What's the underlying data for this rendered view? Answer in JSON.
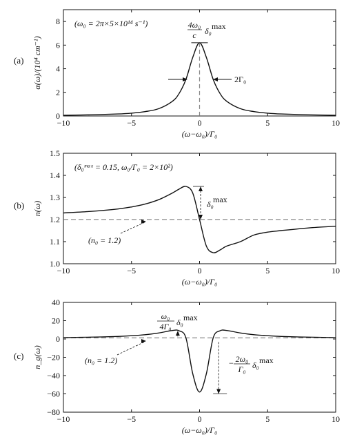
{
  "chart_data": [
    {
      "type": "line",
      "panel_label": "(a)",
      "xlabel": "(ω−ω₀)/Γ₀",
      "ylabel": "α(ω)/(10⁴ cm⁻¹)",
      "xlim": [
        -10,
        10
      ],
      "ylim": [
        0,
        9
      ],
      "xticks": [
        -10,
        -5,
        0,
        5,
        10
      ],
      "yticks": [
        0,
        2,
        4,
        6,
        8
      ],
      "xtick_labels": [
        "−10",
        "−5",
        "0",
        "5",
        "10"
      ],
      "ytick_labels": [
        "0",
        "2",
        "4",
        "6",
        "8"
      ],
      "series": [
        {
          "x": [
            -10,
            -8,
            -6,
            -5,
            -4,
            -3,
            -2,
            -1.5,
            -1,
            -0.5,
            0,
            0.5,
            1,
            1.5,
            2,
            3,
            4,
            5,
            6,
            8,
            10
          ],
          "y": [
            0.06,
            0.1,
            0.17,
            0.24,
            0.37,
            0.62,
            1.24,
            1.91,
            3.1,
            4.96,
            6.2,
            4.96,
            3.1,
            1.91,
            1.24,
            0.62,
            0.37,
            0.24,
            0.17,
            0.1,
            0.06
          ]
        }
      ],
      "annotations": {
        "params": "(ω₀ = 2π×5×10¹⁴ s⁻¹)",
        "peak_label_num": "4ω₀",
        "peak_label_den": "c",
        "peak_label_delta": "δ₀",
        "peak_label_sup": "max",
        "width_label": "2Γ₀"
      }
    },
    {
      "type": "line",
      "panel_label": "(b)",
      "xlabel": "(ω−ω₀)/Γ₀",
      "ylabel": "n(ω)",
      "xlim": [
        -10,
        10
      ],
      "ylim": [
        1.0,
        1.5
      ],
      "xticks": [
        -10,
        -5,
        0,
        5,
        10
      ],
      "yticks": [
        1.0,
        1.1,
        1.2,
        1.3,
        1.4,
        1.5
      ],
      "xtick_labels": [
        "−10",
        "−5",
        "0",
        "5",
        "10"
      ],
      "ytick_labels": [
        "1.0",
        "1.1",
        "1.2",
        "1.3",
        "1.4",
        "1.5"
      ],
      "series": [
        {
          "x": [
            -10,
            -8,
            -6,
            -5,
            -4,
            -3,
            -2,
            -1.5,
            -1,
            -0.5,
            0,
            0.5,
            1,
            1.5,
            2,
            3,
            4,
            5,
            6,
            8,
            10
          ],
          "y": [
            1.23,
            1.237,
            1.248,
            1.257,
            1.27,
            1.29,
            1.32,
            1.338,
            1.35,
            1.32,
            1.2,
            1.08,
            1.05,
            1.062,
            1.08,
            1.1,
            1.13,
            1.143,
            1.15,
            1.162,
            1.17
          ]
        }
      ],
      "reference_line": 1.2,
      "annotations": {
        "params": "(δ₀ᵐᵃˣ = 0.15, ω₀/Γ₀ = 2×10²)",
        "delta_label": "δ₀",
        "delta_sup": "max",
        "n0_label": "(n₀ = 1.2)"
      }
    },
    {
      "type": "line",
      "panel_label": "(c)",
      "xlabel": "(ω−ω₀)/Γ₀",
      "ylabel": "n_g(ω)",
      "xlim": [
        -10,
        10
      ],
      "ylim": [
        -80,
        40
      ],
      "xticks": [
        -10,
        -5,
        0,
        5,
        10
      ],
      "yticks": [
        -80,
        -60,
        -40,
        -20,
        0,
        20,
        40
      ],
      "xtick_labels": [
        "−10",
        "−5",
        "0",
        "5",
        "10"
      ],
      "ytick_labels": [
        "−80",
        "−60",
        "−40",
        "−20",
        "0",
        "20",
        "40"
      ],
      "series": [
        {
          "x": [
            -10,
            -8,
            -6,
            -5,
            -4,
            -3,
            -2,
            -1.5,
            -1,
            -0.5,
            0,
            0.5,
            1,
            1.5,
            2,
            3,
            4,
            5,
            6,
            8,
            10
          ],
          "y": [
            1.5,
            2,
            2.8,
            3.6,
            4.7,
            6.6,
            9.3,
            9,
            1.2,
            -38,
            -58,
            -38,
            1.2,
            9,
            9.3,
            6.6,
            4.7,
            3.6,
            2.8,
            2,
            1.5
          ]
        }
      ],
      "reference_line": 1.2,
      "annotations": {
        "upper_num": "ω₀",
        "upper_den": "4Γ₀",
        "upper_delta": "δ₀",
        "upper_sup": "max",
        "lower_prefix": "−",
        "lower_num": "2ω₀",
        "lower_den": "Γ₀",
        "lower_delta": "δ₀",
        "lower_sup": "max",
        "n0_label": "(n₀ = 1.2)"
      }
    }
  ]
}
